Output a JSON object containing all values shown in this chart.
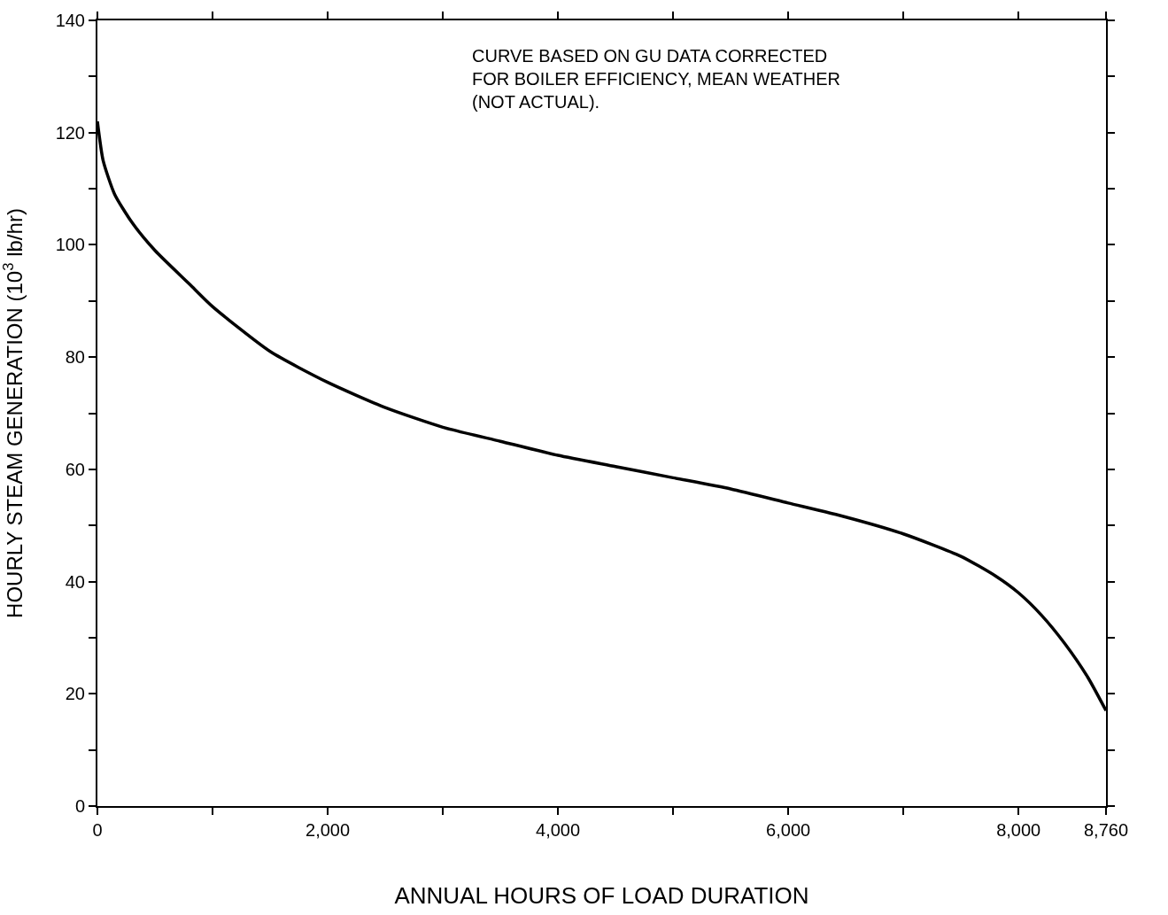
{
  "chart_data": {
    "type": "line",
    "xlabel": "ANNUAL HOURS OF LOAD DURATION",
    "ylabel": "HOURLY STEAM GENERATION (10$^{3}$ lb/hr)",
    "annotations": [
      "CURVE BASED ON GU DATA CORRECTED\nFOR BOILER EFFICIENCY, MEAN WEATHER\n(NOT ACTUAL)."
    ],
    "series": [
      {
        "color": "#000000",
        "x": [
          0,
          50,
          150,
          300,
          500,
          800,
          1000,
          1500,
          2000,
          2500,
          3000,
          3500,
          4000,
          4500,
          5000,
          5500,
          6000,
          6500,
          7000,
          7500,
          7800,
          8000,
          8200,
          8400,
          8600,
          8760
        ],
        "values": [
          122,
          115,
          109,
          104,
          99,
          93,
          89,
          81,
          75.5,
          71,
          67.5,
          65,
          62.5,
          60.5,
          58.5,
          56.5,
          54,
          51.5,
          48.5,
          44.5,
          41,
          38,
          34,
          29,
          23,
          17
        ]
      }
    ],
    "xlim": [
      0,
      8760
    ],
    "ylim": [
      0,
      140
    ],
    "xticks": [
      {
        "value": 0,
        "label": "0"
      },
      {
        "value": 1000,
        "label": null
      },
      {
        "value": 2000,
        "label": "2,000"
      },
      {
        "value": 3000,
        "label": null
      },
      {
        "value": 4000,
        "label": "4,000"
      },
      {
        "value": 5000,
        "label": null
      },
      {
        "value": 6000,
        "label": "6,000"
      },
      {
        "value": 7000,
        "label": null
      },
      {
        "value": 8000,
        "label": "8,000"
      },
      {
        "value": 8760,
        "label": "8,760"
      }
    ],
    "yticks": [
      0,
      {
        "value": 10,
        "label": null
      },
      20,
      {
        "value": 30,
        "label": null
      },
      40,
      {
        "value": 50,
        "label": null
      },
      60,
      {
        "value": 70,
        "label": null
      },
      80,
      {
        "value": 90,
        "label": null
      },
      100,
      {
        "value": 110,
        "label": null
      },
      120,
      {
        "value": 130,
        "label": null
      },
      140
    ],
    "marker": "none",
    "line_style": "solid"
  }
}
